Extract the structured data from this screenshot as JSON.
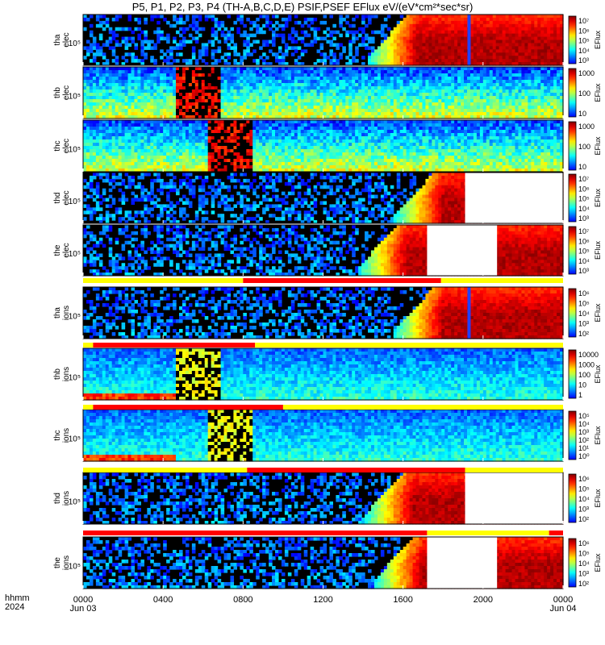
{
  "title": "P5, P1, P2, P3, P4 (TH-A,B,C,D,E) PSIF,PSEF EFlux eV/(eV*cm²*sec*sr)",
  "footer": {
    "row1": "hhmm",
    "row2": "2024"
  },
  "colors": {
    "background": "#000000",
    "fill_white": "#ffffff",
    "bar_red": "#ff0000",
    "bar_yellow": "#ffff00"
  },
  "chart_data": {
    "type": "heatmap",
    "x_axis": {
      "label": "hhmm",
      "ticks": [
        "0000",
        "0400",
        "0800",
        "1200",
        "1600",
        "2000",
        "0000"
      ],
      "tick_hours": [
        0,
        4,
        8,
        12,
        16,
        20,
        24
      ],
      "date_labels": [
        {
          "text": "Jun 03",
          "hour": 0
        },
        {
          "text": "Jun 04",
          "hour": 24
        }
      ],
      "range_hours": [
        0,
        24
      ]
    },
    "panels": [
      {
        "name": "tha elec",
        "ylabel": [
          "tha",
          "elec"
        ],
        "ytick": "10⁵",
        "colorbar_label": "EFlux",
        "colorbar_ticks": [
          "10⁷",
          "10⁶",
          "10⁵",
          "10⁴",
          "10³"
        ],
        "profile": "elec_rise",
        "onset_hour": 14.2,
        "gap_hours": [],
        "notch_hour": 19.3,
        "burst_hours": []
      },
      {
        "name": "thb elec",
        "ylabel": [
          "thb",
          "elec"
        ],
        "ytick": "10⁵",
        "colorbar_label": "EFlux",
        "colorbar_ticks": [
          "1000",
          "100",
          "10"
        ],
        "profile": "flat",
        "onset_hour": null,
        "gap_hours": [],
        "notch_hour": null,
        "burst_hours": [
          4.6,
          6.9
        ]
      },
      {
        "name": "thc elec",
        "ylabel": [
          "thc",
          "elec"
        ],
        "ytick": "10⁵",
        "colorbar_label": "EFlux",
        "colorbar_ticks": [
          "1000",
          "100",
          "10"
        ],
        "profile": "flat",
        "onset_hour": null,
        "gap_hours": [],
        "notch_hour": null,
        "burst_hours": [
          6.3,
          8.5
        ]
      },
      {
        "name": "thd elec",
        "ylabel": [
          "thd",
          "elec"
        ],
        "ytick": "10⁵",
        "colorbar_label": "EFlux",
        "colorbar_ticks": [
          "10⁷",
          "10⁶",
          "10⁵",
          "10⁴",
          "10³"
        ],
        "profile": "elec_rise",
        "onset_hour": 15.5,
        "gap_hours": [
          19.1,
          24.0
        ],
        "notch_hour": null,
        "burst_hours": []
      },
      {
        "name": "the elec",
        "ylabel": [
          "the",
          "elec"
        ],
        "ytick": "10⁵",
        "colorbar_label": "EFlux",
        "colorbar_ticks": [
          "10⁷",
          "10⁶",
          "10⁵",
          "10⁴",
          "10³"
        ],
        "profile": "elec_rise",
        "onset_hour": 13.7,
        "gap_hours": [
          17.2,
          20.7
        ],
        "notch_hour": null,
        "burst_hours": []
      },
      {
        "name": "tha ions",
        "ylabel": [
          "tha",
          "ions"
        ],
        "ytick": "10⁵",
        "colorbar_label": "EFlux",
        "colorbar_ticks": [
          "10⁶",
          "10⁵",
          "10⁴",
          "10³",
          "10²"
        ],
        "profile": "ion_rise",
        "onset_hour": 15.5,
        "gap_hours": [],
        "notch_hour": 19.3,
        "burst_hours": []
      },
      {
        "name": "thb ions",
        "ylabel": [
          "thb",
          "ions"
        ],
        "ytick": "10⁵",
        "colorbar_label": "EFlux",
        "colorbar_ticks": [
          "10000",
          "1000",
          "100",
          "10",
          "1"
        ],
        "profile": "ion_flat",
        "onset_hour": null,
        "gap_hours": [],
        "notch_hour": null,
        "burst_hours": [
          4.6,
          6.9
        ]
      },
      {
        "name": "thc ions",
        "ylabel": [
          "thc",
          "ions"
        ],
        "ytick": "10⁵",
        "colorbar_label": "EFlux",
        "colorbar_ticks": [
          "10⁵",
          "10⁴",
          "10³",
          "10²",
          "10¹",
          "10⁰"
        ],
        "profile": "ion_flat",
        "onset_hour": null,
        "gap_hours": [],
        "notch_hour": null,
        "burst_hours": [
          6.3,
          8.5
        ]
      },
      {
        "name": "thd ions",
        "ylabel": [
          "thd",
          "ions"
        ],
        "ytick": "10⁵",
        "colorbar_label": "EFlux",
        "colorbar_ticks": [
          "10⁶",
          "10⁵",
          "10⁴",
          "10³",
          "10²"
        ],
        "profile": "ion_rise",
        "onset_hour": 14.0,
        "gap_hours": [
          19.1,
          24.0
        ],
        "notch_hour": null,
        "burst_hours": []
      },
      {
        "name": "the ions",
        "ylabel": [
          "the",
          "ions"
        ],
        "ytick": "10⁵",
        "colorbar_label": "EFlux",
        "colorbar_ticks": [
          "10⁶",
          "10⁵",
          "10⁴",
          "10³",
          "10²"
        ],
        "profile": "ion_rise",
        "onset_hour": 14.5,
        "gap_hours": [
          17.2,
          20.7
        ],
        "notch_hour": null,
        "burst_hours": []
      }
    ],
    "mode_bars": [
      {
        "segments": [
          {
            "start": 0,
            "end": 8.0,
            "color": "yellow"
          },
          {
            "start": 8.0,
            "end": 17.9,
            "color": "red"
          },
          {
            "start": 17.9,
            "end": 24,
            "color": "yellow"
          }
        ]
      },
      {
        "segments": [
          {
            "start": 0,
            "end": 0.5,
            "color": "yellow"
          },
          {
            "start": 0.5,
            "end": 8.6,
            "color": "red"
          },
          {
            "start": 8.6,
            "end": 24,
            "color": "yellow"
          }
        ]
      },
      {
        "segments": [
          {
            "start": 0,
            "end": 0.5,
            "color": "yellow"
          },
          {
            "start": 0.5,
            "end": 10.0,
            "color": "red"
          },
          {
            "start": 10.0,
            "end": 24,
            "color": "yellow"
          }
        ]
      },
      {
        "segments": [
          {
            "start": 0,
            "end": 8.2,
            "color": "yellow"
          },
          {
            "start": 8.2,
            "end": 19.1,
            "color": "red"
          },
          {
            "start": 19.1,
            "end": 24,
            "color": "yellow"
          }
        ]
      },
      {
        "segments": [
          {
            "start": 0,
            "end": 17.2,
            "color": "red"
          },
          {
            "start": 17.2,
            "end": 23.3,
            "color": "yellow"
          },
          {
            "start": 23.3,
            "end": 24,
            "color": "red"
          }
        ]
      }
    ]
  }
}
